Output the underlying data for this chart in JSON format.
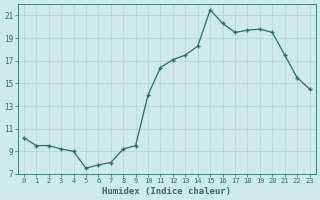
{
  "x": [
    0,
    1,
    2,
    3,
    4,
    5,
    6,
    7,
    8,
    9,
    10,
    11,
    12,
    13,
    14,
    15,
    16,
    17,
    18,
    19,
    20,
    21,
    22,
    23
  ],
  "y": [
    10.2,
    9.5,
    9.5,
    9.2,
    9.0,
    7.5,
    7.8,
    8.0,
    9.2,
    9.5,
    14.0,
    16.4,
    17.1,
    17.5,
    18.3,
    21.5,
    20.3,
    19.5,
    19.7,
    19.8,
    19.5,
    17.5,
    15.5,
    14.5
  ],
  "xlim": [
    -0.5,
    23.5
  ],
  "ylim": [
    7,
    22
  ],
  "yticks": [
    7,
    9,
    11,
    13,
    15,
    17,
    19,
    21
  ],
  "xticks": [
    0,
    1,
    2,
    3,
    4,
    5,
    6,
    7,
    8,
    9,
    10,
    11,
    12,
    13,
    14,
    15,
    16,
    17,
    18,
    19,
    20,
    21,
    22,
    23
  ],
  "xlabel": "Humidex (Indice chaleur)",
  "line_color": "#2d6e63",
  "bg_color": "#ceeae7",
  "grid_color": "#b8d8d4",
  "label_color": "#2d6e63",
  "tick_color": "#2d6e63",
  "marker_color": "#2d6e63"
}
